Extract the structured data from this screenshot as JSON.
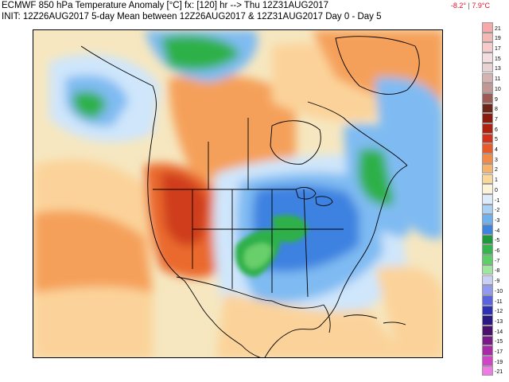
{
  "header": {
    "line1": "ECMWF 850 hPa Temperature Anomaly [°C] fx: [120] hr --> Thu 12Z31AUG2017",
    "line2": "INIT: 12Z26AUG2017 5-day Mean between 12Z26AUG2017 & 12Z31AUG2017   Day 0 - Day 5",
    "range_min": "-8.2°",
    "range_sep": "|",
    "range_max": "7.9°C"
  },
  "map": {
    "region": "North America",
    "icon": "weather-anomaly-map",
    "colors": {
      "ocean_neutral": "#f6e7c0",
      "warm_light": "#fbd39a",
      "warm_mid": "#f5a05a",
      "warm_strong": "#ea6a2e",
      "hot": "#cf3d1c",
      "cool_light": "#cfe6fb",
      "cool_mid": "#7fbbf2",
      "cool_strong": "#3d82e0",
      "cold_green": "#2fb04a",
      "light_green": "#67cf6b"
    }
  },
  "legend": {
    "entries": [
      {
        "label": "21",
        "color": "#f7a8a8"
      },
      {
        "label": "19",
        "color": "#f4b9b5"
      },
      {
        "label": "17",
        "color": "#f5cccb"
      },
      {
        "label": "15",
        "color": "#f2dede"
      },
      {
        "label": "13",
        "color": "#e7d3d3"
      },
      {
        "label": "11",
        "color": "#d6b3b0"
      },
      {
        "label": "10",
        "color": "#c19893"
      },
      {
        "label": "9",
        "color": "#9c5c55"
      },
      {
        "label": "8",
        "color": "#6e2418"
      },
      {
        "label": "7",
        "color": "#8c1a0f"
      },
      {
        "label": "6",
        "color": "#b0200f"
      },
      {
        "label": "5",
        "color": "#d4311a"
      },
      {
        "label": "4",
        "color": "#ea5a28"
      },
      {
        "label": "3",
        "color": "#f38a45"
      },
      {
        "label": "2",
        "color": "#f7b36c"
      },
      {
        "label": "1",
        "color": "#fbd799"
      },
      {
        "label": "0",
        "color": "#fdf3d8"
      },
      {
        "label": "-1",
        "color": "#dcecfb"
      },
      {
        "label": "-2",
        "color": "#a9d1f6"
      },
      {
        "label": "-3",
        "color": "#6fb0ee"
      },
      {
        "label": "-4",
        "color": "#3d84df"
      },
      {
        "label": "-5",
        "color": "#1e9a3c"
      },
      {
        "label": "-6",
        "color": "#34b54d"
      },
      {
        "label": "-7",
        "color": "#5ccf66"
      },
      {
        "label": "-8",
        "color": "#9fe6a0"
      },
      {
        "label": "-9",
        "color": "#c9d0f5"
      },
      {
        "label": "-10",
        "color": "#8f9af0"
      },
      {
        "label": "-11",
        "color": "#5963e0"
      },
      {
        "label": "-12",
        "color": "#2c2fb8"
      },
      {
        "label": "-13",
        "color": "#2a1885"
      },
      {
        "label": "-14",
        "color": "#4b0f6e"
      },
      {
        "label": "-15",
        "color": "#7a1a8a"
      },
      {
        "label": "-17",
        "color": "#a82aa8"
      },
      {
        "label": "-19",
        "color": "#d044c8"
      },
      {
        "label": "-21",
        "color": "#ee7ae6"
      }
    ]
  }
}
